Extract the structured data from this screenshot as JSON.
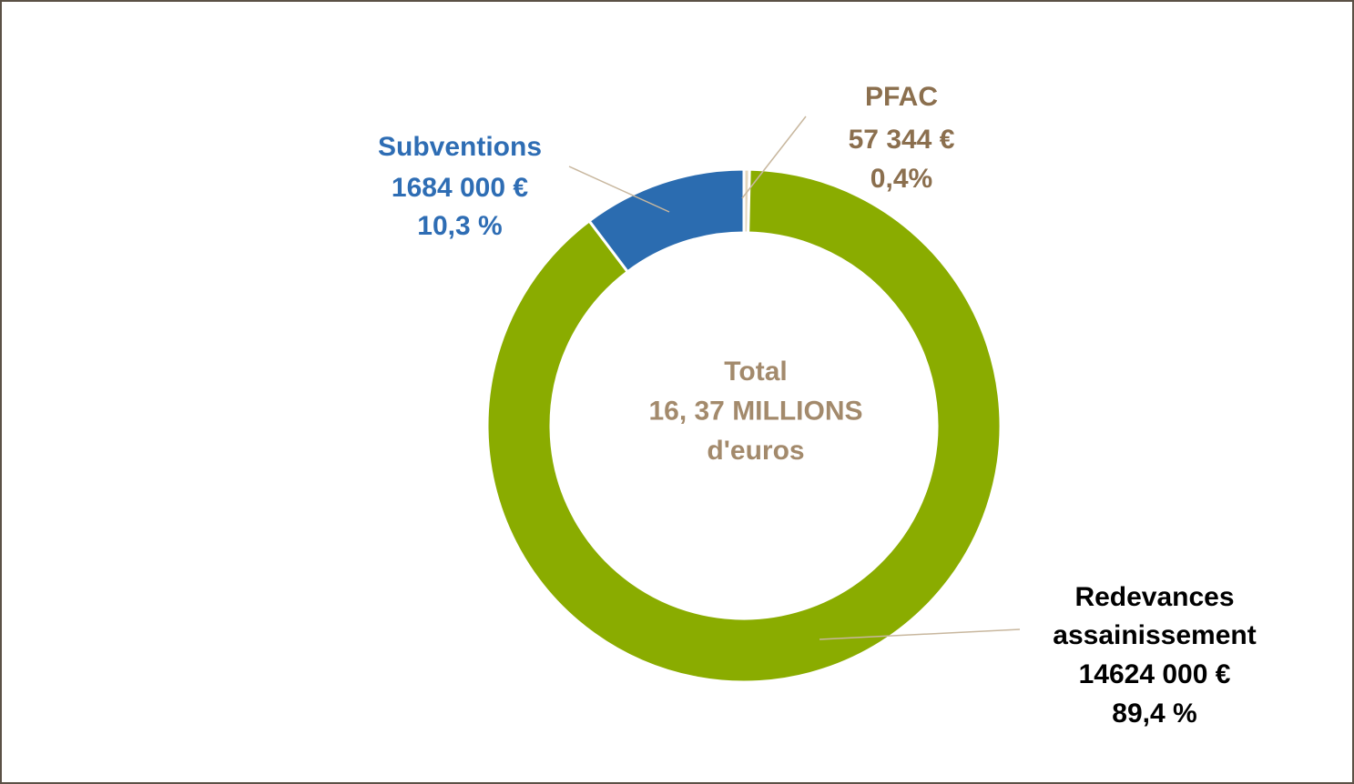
{
  "chart_data": {
    "type": "donut",
    "categories": [
      "PFAC",
      "Redevances assainissement",
      "Subventions"
    ],
    "values": [
      57344,
      14624000,
      1684000
    ],
    "value_labels": [
      "57 344 €",
      "14624 000 €",
      "1684 000 €"
    ],
    "percentages": [
      {
        "value": 0.4,
        "label": "0,4%"
      },
      {
        "value": 89.4,
        "label": "89,4 %"
      },
      {
        "value": 10.3,
        "label": "10,3 %"
      }
    ],
    "colors": [
      "#e3d6bd",
      "#8aac00",
      "#2b6cb0"
    ],
    "label_colors": [
      "#8b6f4e",
      "#000000",
      "#2e6db4"
    ],
    "center_label": [
      "Total",
      "16, 37 MILLIONS",
      "d'euros"
    ],
    "center_label_color": "#a38a6c"
  }
}
